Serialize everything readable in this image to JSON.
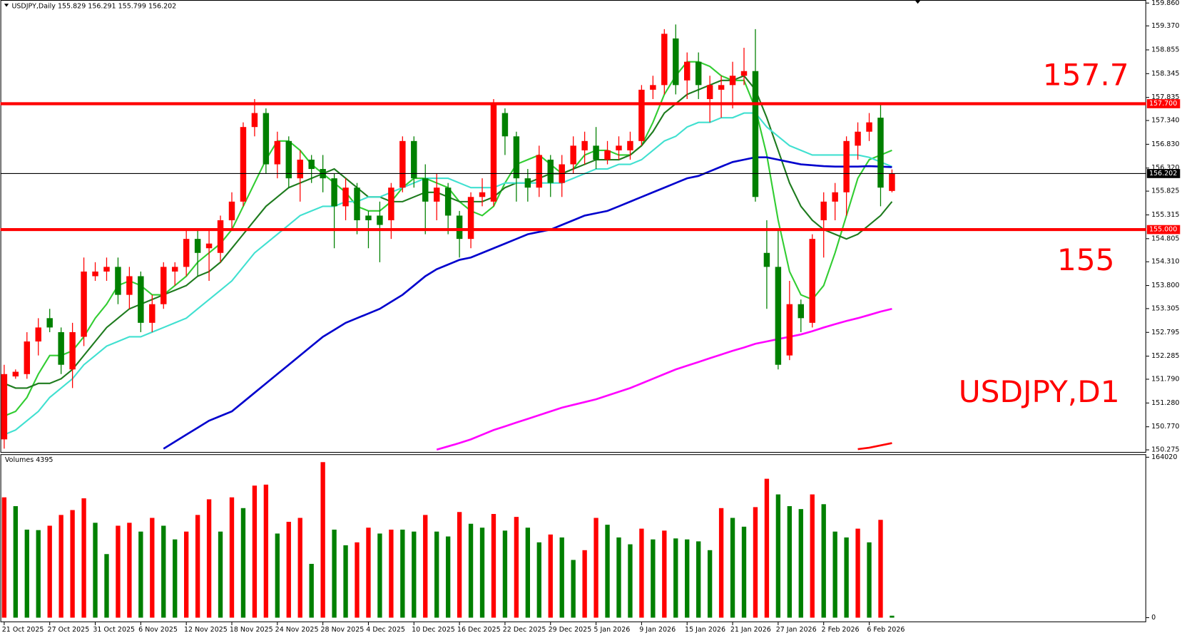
{
  "chart_data": [
    {
      "type": "candlestick",
      "title": "USDJPY,Daily",
      "open": [
        150.5,
        151.85,
        151.9,
        152.6,
        153.1,
        152.8,
        152.0,
        152.7,
        154.0,
        154.1,
        154.2,
        153.6,
        154.0,
        153.0,
        153.4,
        154.1,
        154.2,
        154.8,
        154.6,
        154.5,
        155.2,
        155.6,
        157.2,
        157.5,
        156.4,
        156.9,
        156.1,
        156.5,
        156.3,
        156.1,
        155.5,
        155.9,
        155.3,
        155.3,
        155.2,
        155.9,
        156.9,
        156.1,
        155.6,
        155.9,
        155.3,
        154.8,
        155.7,
        155.6,
        157.5,
        157.0,
        156.1,
        155.9,
        156.5,
        156.0,
        156.4,
        156.7,
        156.8,
        156.5,
        156.7,
        156.7,
        156.9,
        158.0,
        158.1,
        159.1,
        158.2,
        158.6,
        157.8,
        158.0,
        158.1,
        158.3,
        158.4,
        154.5,
        154.2,
        152.3,
        153.4,
        153.0,
        155.2,
        155.6,
        155.8,
        156.8,
        157.1,
        157.4,
        155.829
      ],
      "high": [
        152.1,
        152.0,
        152.8,
        153.1,
        153.3,
        152.9,
        153.0,
        154.4,
        154.3,
        154.4,
        154.4,
        154.2,
        154.1,
        153.6,
        154.3,
        154.3,
        155.0,
        155.0,
        155.0,
        155.3,
        155.8,
        157.3,
        157.8,
        157.6,
        157.1,
        157.0,
        156.7,
        156.6,
        156.6,
        156.2,
        156.1,
        156.0,
        155.4,
        155.6,
        156.0,
        157.0,
        157.0,
        156.4,
        156.2,
        156.0,
        155.4,
        155.8,
        156.1,
        157.8,
        157.6,
        157.1,
        156.3,
        156.8,
        156.6,
        156.6,
        157.0,
        157.1,
        157.2,
        156.9,
        157.0,
        157.1,
        158.1,
        158.3,
        159.3,
        159.4,
        158.8,
        158.8,
        158.3,
        158.3,
        158.6,
        158.9,
        159.3,
        155.2,
        155.0,
        153.9,
        153.5,
        154.9,
        155.8,
        156.0,
        157.0,
        157.3,
        157.5,
        157.7,
        156.291
      ],
      "low": [
        150.3,
        151.8,
        151.8,
        152.3,
        152.8,
        151.9,
        151.6,
        152.5,
        153.9,
        153.9,
        153.4,
        153.3,
        152.8,
        152.8,
        153.3,
        153.8,
        154.0,
        154.0,
        153.9,
        154.3,
        155.0,
        155.5,
        157.0,
        156.2,
        156.1,
        155.9,
        155.6,
        156.0,
        155.8,
        154.6,
        155.2,
        154.9,
        154.6,
        154.3,
        154.8,
        155.8,
        155.9,
        154.9,
        155.2,
        154.9,
        154.4,
        154.6,
        155.5,
        155.5,
        156.6,
        155.6,
        155.6,
        155.7,
        155.7,
        155.7,
        156.2,
        156.4,
        156.3,
        156.4,
        156.5,
        156.5,
        156.8,
        157.8,
        157.9,
        157.9,
        157.8,
        157.8,
        157.3,
        157.4,
        157.6,
        158.1,
        155.6,
        153.3,
        152.0,
        152.2,
        152.8,
        152.9,
        154.4,
        155.2,
        155.3,
        156.5,
        156.9,
        155.5,
        155.799
      ],
      "close": [
        151.9,
        151.95,
        152.6,
        152.9,
        152.9,
        152.1,
        152.8,
        154.1,
        154.1,
        154.2,
        153.6,
        154.0,
        153.0,
        153.4,
        154.2,
        154.2,
        154.8,
        154.5,
        154.7,
        155.2,
        155.6,
        157.2,
        157.5,
        156.4,
        156.9,
        156.1,
        156.5,
        156.3,
        156.1,
        155.5,
        155.9,
        155.2,
        155.2,
        155.1,
        155.9,
        156.9,
        156.1,
        155.6,
        155.9,
        155.3,
        154.8,
        155.7,
        155.8,
        157.7,
        157.0,
        156.1,
        155.9,
        156.6,
        156.0,
        156.4,
        156.8,
        156.9,
        156.5,
        156.7,
        156.8,
        156.9,
        158.0,
        158.1,
        159.2,
        158.1,
        158.6,
        158.1,
        158.1,
        158.1,
        158.3,
        158.4,
        155.7,
        154.2,
        152.1,
        153.4,
        153.1,
        154.8,
        155.6,
        155.8,
        156.9,
        157.1,
        157.3,
        155.9,
        156.202
      ],
      "up_color": "#ff0000",
      "down_color": "#008000",
      "series": [
        {
          "color": "#32cd32",
          "values": [
            151.0,
            151.1,
            151.4,
            151.9,
            152.3,
            152.3,
            152.4,
            152.7,
            153.1,
            153.4,
            153.8,
            153.9,
            153.8,
            153.6,
            153.6,
            153.8,
            154.0,
            154.3,
            154.5,
            154.7,
            155.0,
            155.5,
            156.0,
            156.5,
            156.9,
            156.9,
            156.7,
            156.4,
            156.2,
            156.0,
            155.8,
            155.5,
            155.4,
            155.4,
            155.6,
            155.9,
            156.1,
            156.1,
            156.0,
            155.9,
            155.6,
            155.4,
            155.3,
            155.5,
            156.0,
            156.4,
            156.5,
            156.6,
            156.4,
            156.2,
            156.3,
            156.6,
            156.7,
            156.7,
            156.6,
            156.6,
            156.8,
            157.3,
            157.9,
            158.3,
            158.6,
            158.6,
            158.5,
            158.3,
            158.2,
            158.2,
            157.6,
            156.6,
            155.2,
            154.1,
            153.6,
            153.5,
            153.8,
            154.5,
            155.3,
            156.1,
            156.5,
            156.6,
            156.7
          ]
        },
        {
          "color": "#1e7b1e",
          "values": [
            151.7,
            151.6,
            151.6,
            151.7,
            151.7,
            151.8,
            152.0,
            152.3,
            152.6,
            152.9,
            153.1,
            153.3,
            153.4,
            153.5,
            153.6,
            153.7,
            153.8,
            154.0,
            154.1,
            154.3,
            154.6,
            154.9,
            155.2,
            155.5,
            155.7,
            155.9,
            156.0,
            156.1,
            156.2,
            156.3,
            156.1,
            155.9,
            155.7,
            155.7,
            155.6,
            155.6,
            155.7,
            155.8,
            155.8,
            155.7,
            155.6,
            155.6,
            155.6,
            155.7,
            155.9,
            156.0,
            156.0,
            156.1,
            156.2,
            156.2,
            156.3,
            156.4,
            156.5,
            156.5,
            156.5,
            156.6,
            156.8,
            157.1,
            157.5,
            157.7,
            157.9,
            158.0,
            158.1,
            158.2,
            158.2,
            158.3,
            158.0,
            157.4,
            156.7,
            156.0,
            155.5,
            155.2,
            155.0,
            154.9,
            154.8,
            154.9,
            155.1,
            155.3,
            155.6
          ]
        },
        {
          "color": "#40e0d0",
          "values": [
            150.6,
            150.7,
            150.9,
            151.1,
            151.4,
            151.6,
            151.8,
            152.1,
            152.3,
            152.5,
            152.6,
            152.7,
            152.7,
            152.8,
            152.9,
            153.0,
            153.1,
            153.3,
            153.5,
            153.7,
            153.9,
            154.2,
            154.5,
            154.7,
            154.9,
            155.1,
            155.3,
            155.4,
            155.5,
            155.5,
            155.6,
            155.6,
            155.7,
            155.7,
            155.8,
            155.9,
            156.0,
            156.1,
            156.1,
            156.1,
            156.0,
            155.9,
            155.9,
            155.9,
            156.0,
            156.0,
            156.0,
            156.0,
            156.0,
            156.0,
            156.1,
            156.2,
            156.3,
            156.3,
            156.4,
            156.4,
            156.5,
            156.7,
            156.9,
            157.0,
            157.2,
            157.3,
            157.3,
            157.4,
            157.4,
            157.5,
            157.5,
            157.2,
            157.0,
            156.8,
            156.7,
            156.6,
            156.6,
            156.6,
            156.6,
            156.6,
            156.55,
            156.45,
            156.35
          ]
        },
        {
          "color": "#0000cd",
          "values": [
            null,
            null,
            null,
            null,
            null,
            null,
            null,
            null,
            null,
            null,
            null,
            null,
            null,
            null,
            150.3,
            150.45,
            150.6,
            150.75,
            150.9,
            151.0,
            151.1,
            151.3,
            151.5,
            151.7,
            151.9,
            152.1,
            152.3,
            152.5,
            152.7,
            152.85,
            153.0,
            153.1,
            153.2,
            153.3,
            153.45,
            153.6,
            153.8,
            154.0,
            154.15,
            154.25,
            154.35,
            154.4,
            154.5,
            154.6,
            154.7,
            154.8,
            154.9,
            154.95,
            155.0,
            155.1,
            155.2,
            155.3,
            155.35,
            155.4,
            155.5,
            155.6,
            155.7,
            155.8,
            155.9,
            156.0,
            156.1,
            156.15,
            156.25,
            156.35,
            156.45,
            156.5,
            156.55,
            156.55,
            156.5,
            156.45,
            156.4,
            156.38,
            156.36,
            156.35,
            156.35,
            156.35,
            156.36,
            156.35,
            156.34
          ]
        },
        {
          "color": "#ff00ff",
          "values": [
            null,
            null,
            null,
            null,
            null,
            null,
            null,
            null,
            null,
            null,
            null,
            null,
            null,
            null,
            null,
            null,
            null,
            null,
            null,
            null,
            null,
            null,
            null,
            null,
            null,
            null,
            null,
            null,
            null,
            null,
            null,
            null,
            null,
            null,
            null,
            null,
            null,
            null,
            150.28,
            150.35,
            150.42,
            150.5,
            150.6,
            150.7,
            150.78,
            150.86,
            150.94,
            151.02,
            151.1,
            151.18,
            151.24,
            151.3,
            151.36,
            151.44,
            151.52,
            151.6,
            151.7,
            151.8,
            151.9,
            152.0,
            152.08,
            152.16,
            152.24,
            152.32,
            152.4,
            152.47,
            152.55,
            152.6,
            152.65,
            152.7,
            152.75,
            152.82,
            152.9,
            152.97,
            153.04,
            153.1,
            153.17,
            153.24,
            153.3
          ]
        },
        {
          "color": "#ff0000",
          "values": [
            null,
            null,
            null,
            null,
            null,
            null,
            null,
            null,
            null,
            null,
            null,
            null,
            null,
            null,
            null,
            null,
            null,
            null,
            null,
            null,
            null,
            null,
            null,
            null,
            null,
            null,
            null,
            null,
            null,
            null,
            null,
            null,
            null,
            null,
            null,
            null,
            null,
            null,
            null,
            null,
            null,
            null,
            null,
            null,
            null,
            null,
            null,
            null,
            null,
            null,
            null,
            null,
            null,
            null,
            null,
            null,
            null,
            null,
            null,
            null,
            null,
            null,
            null,
            null,
            null,
            null,
            null,
            null,
            null,
            null,
            null,
            null,
            null,
            null,
            null,
            150.29,
            150.32,
            150.37,
            150.42
          ]
        }
      ],
      "levels": [
        {
          "value": 157.7,
          "label": "157.700",
          "color": "#ff0000"
        },
        {
          "value": 156.202,
          "label": "156.202",
          "color": "#000000"
        },
        {
          "value": 155,
          "label": "155.000",
          "color": "#ff0000"
        }
      ],
      "annotations": [
        "157.7",
        "155",
        "USDJPY,D1"
      ],
      "ylim": [
        150.23,
        159.925
      ],
      "yticks": [
        {
          "value": 159.86,
          "label": "159.860"
        },
        {
          "value": 159.37,
          "label": "159.370"
        },
        158.855,
        158.345,
        157.835,
        {
          "value": 157.34,
          "label": "157.340"
        },
        {
          "value": 156.83,
          "label": "156.830"
        },
        {
          "value": 156.32,
          "label": "156.320"
        },
        155.825,
        155.315,
        154.805,
        {
          "value": 154.31,
          "label": "154.310"
        },
        {
          "value": 153.8,
          "label": "153.800"
        },
        153.305,
        152.795,
        152.285,
        {
          "value": 151.79,
          "label": "151.790"
        },
        {
          "value": 151.28,
          "label": "151.280"
        },
        {
          "value": 150.77,
          "label": "150.770"
        },
        150.275
      ]
    },
    {
      "type": "bar",
      "title": "Volumes 4395",
      "categories": [
        "21 Oct 2025",
        null,
        null,
        null,
        "27 Oct 2025",
        null,
        null,
        null,
        "31 Oct 2025",
        null,
        null,
        null,
        "6 Nov 2025",
        null,
        null,
        null,
        "12 Nov 2025",
        null,
        null,
        null,
        "18 Nov 2025",
        null,
        null,
        null,
        "24 Nov 2025",
        null,
        null,
        null,
        "28 Nov 2025",
        null,
        null,
        null,
        "4 Dec 2025",
        null,
        null,
        null,
        "10 Dec 2025",
        null,
        null,
        null,
        "16 Dec 2025",
        null,
        null,
        null,
        "22 Dec 2025",
        null,
        null,
        null,
        "29 Dec 2025",
        null,
        null,
        null,
        "5 Jan 2026",
        null,
        null,
        null,
        "9 Jan 2026",
        null,
        null,
        null,
        "15 Jan 2026",
        null,
        null,
        null,
        "21 Jan 2026",
        null,
        null,
        null,
        "27 Jan 2026",
        null,
        null,
        null,
        "2 Feb 2026",
        null,
        null,
        null,
        "6 Feb 2026",
        null,
        null
      ],
      "values": [
        123000,
        114000,
        90000,
        89500,
        94000,
        105000,
        110000,
        122000,
        97000,
        65000,
        94000,
        97000,
        88000,
        102000,
        94000,
        80000,
        88000,
        105000,
        121000,
        88000,
        123000,
        112000,
        135000,
        136000,
        86000,
        98000,
        102000,
        55000,
        159000,
        90000,
        74000,
        77000,
        92000,
        86000,
        90000,
        90000,
        88000,
        105000,
        88000,
        83000,
        108000,
        96000,
        92000,
        106000,
        89000,
        103000,
        92000,
        77000,
        85000,
        82000,
        59000,
        69000,
        102000,
        95000,
        82000,
        75000,
        91000,
        80000,
        89000,
        81000,
        80000,
        78000,
        69000,
        112000,
        102000,
        93000,
        113000,
        142000,
        126000,
        114000,
        111000,
        126000,
        116000,
        88000,
        82000,
        91000,
        77000,
        100000,
        2000
      ],
      "up_color": "#ff0000",
      "down_color": "#008000",
      "ylim": [
        0,
        164020
      ],
      "yticks": [
        164020,
        0
      ]
    }
  ]
}
